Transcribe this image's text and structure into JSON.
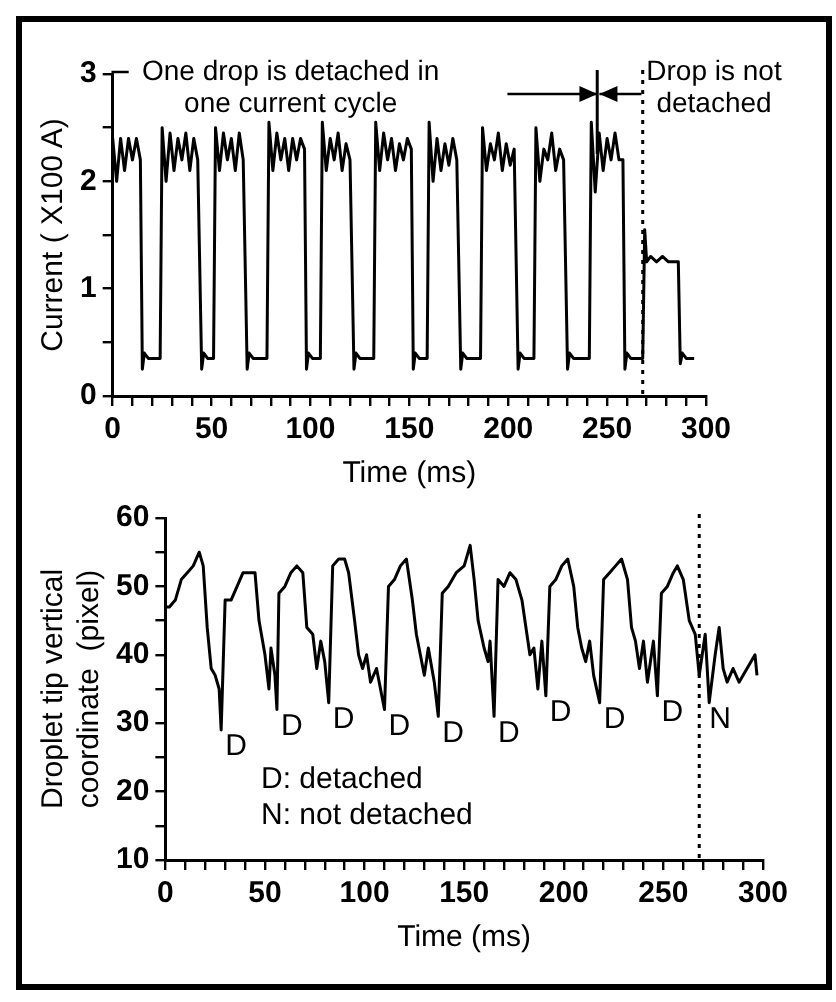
{
  "chart_data": [
    {
      "type": "line",
      "xlabel": "Time (ms)",
      "ylabel": "Current ( X100 A)",
      "xlim": [
        0,
        300
      ],
      "ylim": [
        0,
        3
      ],
      "xticks": [
        0,
        {
          "value": 10,
          "label": null
        },
        {
          "value": 20,
          "label": null
        },
        {
          "value": 30,
          "label": null
        },
        {
          "value": 40,
          "label": null
        },
        50,
        {
          "value": 60,
          "label": null
        },
        {
          "value": 70,
          "label": null
        },
        {
          "value": 80,
          "label": null
        },
        {
          "value": 90,
          "label": null
        },
        100,
        {
          "value": 110,
          "label": null
        },
        {
          "value": 120,
          "label": null
        },
        {
          "value": 130,
          "label": null
        },
        {
          "value": 140,
          "label": null
        },
        150,
        {
          "value": 160,
          "label": null
        },
        {
          "value": 170,
          "label": null
        },
        {
          "value": 180,
          "label": null
        },
        {
          "value": 190,
          "label": null
        },
        200,
        {
          "value": 210,
          "label": null
        },
        {
          "value": 220,
          "label": null
        },
        {
          "value": 230,
          "label": null
        },
        {
          "value": 240,
          "label": null
        },
        250,
        {
          "value": 260,
          "label": null
        },
        {
          "value": 270,
          "label": null
        },
        {
          "value": 280,
          "label": null
        },
        {
          "value": 290,
          "label": null
        },
        300
      ],
      "yticks": [
        0,
        {
          "value": 0.5,
          "label": null
        },
        1,
        {
          "value": 1.5,
          "label": null
        },
        2,
        {
          "value": 2.5,
          "label": null
        },
        3
      ],
      "series": [
        {
          "color": "#000000",
          "x": [
            0,
            2,
            4,
            6,
            8,
            10,
            12,
            14,
            15,
            16,
            18,
            24,
            25,
            27,
            29,
            31,
            33,
            35,
            37,
            39,
            41,
            43,
            45,
            46,
            48,
            51,
            52,
            54,
            56,
            58,
            60,
            62,
            64,
            66,
            68,
            69,
            71,
            78,
            79,
            81,
            83,
            85,
            87,
            89,
            91,
            93,
            95,
            97,
            98,
            99,
            101,
            105,
            106,
            108,
            110,
            112,
            114,
            116,
            118,
            120,
            122,
            123,
            125,
            132,
            133,
            135,
            137,
            139,
            141,
            143,
            145,
            147,
            149,
            151,
            152,
            153,
            155,
            159,
            160,
            162,
            164,
            166,
            168,
            170,
            172,
            174,
            176,
            177,
            179,
            186,
            187,
            189,
            191,
            193,
            195,
            197,
            199,
            201,
            203,
            205,
            206,
            208,
            213,
            214,
            216,
            218,
            220,
            222,
            224,
            226,
            228,
            230,
            231,
            233,
            241,
            242,
            244,
            246,
            248,
            250,
            252,
            254,
            256,
            258,
            259,
            260,
            262,
            268,
            269,
            270,
            272,
            275,
            278,
            281,
            284,
            286,
            287,
            288,
            290,
            294
          ],
          "values": [
            2.4,
            2.0,
            2.4,
            2.1,
            2.4,
            2.2,
            2.4,
            2.2,
            0.25,
            0.4,
            0.35,
            0.35,
            2.5,
            2.0,
            2.45,
            2.1,
            2.4,
            2.2,
            2.45,
            2.1,
            2.4,
            2.2,
            0.25,
            0.4,
            0.35,
            0.35,
            2.5,
            2.1,
            2.45,
            2.2,
            2.4,
            2.1,
            2.45,
            2.2,
            0.25,
            0.4,
            0.35,
            0.35,
            2.55,
            2.1,
            2.45,
            2.2,
            2.4,
            2.1,
            2.4,
            2.2,
            2.4,
            2.3,
            0.25,
            0.4,
            0.35,
            0.35,
            2.55,
            2.1,
            2.4,
            2.2,
            2.45,
            2.1,
            2.35,
            2.2,
            0.25,
            0.4,
            0.35,
            0.35,
            2.55,
            2.1,
            2.45,
            2.2,
            2.4,
            2.1,
            2.35,
            2.2,
            2.4,
            2.3,
            0.25,
            0.4,
            0.35,
            0.35,
            2.55,
            2.0,
            2.4,
            2.1,
            2.35,
            2.15,
            2.4,
            2.2,
            0.25,
            0.4,
            0.35,
            0.35,
            2.5,
            2.1,
            2.35,
            2.2,
            2.45,
            2.1,
            2.35,
            2.15,
            2.3,
            0.25,
            0.4,
            0.35,
            0.35,
            2.5,
            2.0,
            2.3,
            2.2,
            2.45,
            2.1,
            2.3,
            2.2,
            0.25,
            0.4,
            0.35,
            0.35,
            2.55,
            1.9,
            2.45,
            2.1,
            2.4,
            2.2,
            2.45,
            2.2,
            2.2,
            0.25,
            0.4,
            0.35,
            0.35,
            1.55,
            1.25,
            1.3,
            1.25,
            1.3,
            1.25,
            1.25,
            1.25,
            0.3,
            0.4,
            0.35,
            0.35
          ]
        }
      ],
      "ref_lines": [
        {
          "axis": "x",
          "value": 245,
          "line_style": "solid"
        },
        {
          "axis": "x",
          "value": 268,
          "line_style": "dotted"
        }
      ],
      "annotations": [
        "One drop is detached in one current cycle",
        "Drop is not detached"
      ]
    },
    {
      "type": "line",
      "xlabel": "Time (ms)",
      "ylabel": "Droplet tip vertical\ncoordinate  (pixel)",
      "xlim": [
        0,
        300
      ],
      "ylim": [
        10,
        60
      ],
      "xticks": [
        0,
        {
          "value": 10,
          "label": null
        },
        {
          "value": 20,
          "label": null
        },
        {
          "value": 30,
          "label": null
        },
        {
          "value": 40,
          "label": null
        },
        50,
        {
          "value": 60,
          "label": null
        },
        {
          "value": 70,
          "label": null
        },
        {
          "value": 80,
          "label": null
        },
        {
          "value": 90,
          "label": null
        },
        100,
        {
          "value": 110,
          "label": null
        },
        {
          "value": 120,
          "label": null
        },
        {
          "value": 130,
          "label": null
        },
        {
          "value": 140,
          "label": null
        },
        150,
        {
          "value": 160,
          "label": null
        },
        {
          "value": 170,
          "label": null
        },
        {
          "value": 180,
          "label": null
        },
        {
          "value": 190,
          "label": null
        },
        200,
        {
          "value": 210,
          "label": null
        },
        {
          "value": 220,
          "label": null
        },
        {
          "value": 230,
          "label": null
        },
        {
          "value": 240,
          "label": null
        },
        250,
        {
          "value": 260,
          "label": null
        },
        {
          "value": 270,
          "label": null
        },
        {
          "value": 280,
          "label": null
        },
        {
          "value": 290,
          "label": null
        },
        300
      ],
      "yticks": [
        10,
        {
          "value": 15,
          "label": null
        },
        20,
        {
          "value": 25,
          "label": null
        },
        30,
        {
          "value": 35,
          "label": null
        },
        40,
        {
          "value": 45,
          "label": null
        },
        50,
        {
          "value": 55,
          "label": null
        },
        60
      ],
      "series": [
        {
          "color": "#000000",
          "x": [
            0,
            2,
            5,
            8,
            11,
            14,
            17,
            19,
            21,
            23,
            25,
            27,
            28,
            30,
            33,
            36,
            39,
            43,
            45,
            47,
            50,
            52,
            53,
            55,
            56,
            57,
            60,
            63,
            66,
            69,
            71,
            74,
            76,
            78,
            80,
            82,
            84,
            87,
            90,
            92,
            95,
            97,
            99,
            101,
            103,
            106,
            108,
            110,
            112,
            115,
            118,
            121,
            124,
            126,
            128,
            130,
            132,
            135,
            137,
            139,
            142,
            146,
            150,
            153,
            155,
            157,
            160,
            162,
            163,
            165,
            167,
            170,
            173,
            176,
            179,
            181,
            183,
            185,
            187,
            189,
            191,
            193,
            196,
            199,
            202,
            205,
            207,
            209,
            211,
            213,
            215,
            218,
            220,
            223,
            226,
            229,
            232,
            234,
            236,
            238,
            240,
            242,
            245,
            247,
            249,
            252,
            255,
            257,
            260,
            263,
            266,
            268,
            271,
            273,
            276,
            278,
            280,
            282,
            285,
            288,
            292,
            296,
            297
          ],
          "values": [
            47,
            47,
            48,
            51,
            52,
            53,
            55,
            53,
            44,
            38,
            37,
            35,
            29,
            48,
            48,
            50,
            52,
            52,
            52,
            45,
            40,
            35,
            41,
            37,
            32,
            49,
            50,
            52,
            53,
            52,
            44,
            43,
            38,
            42,
            39,
            33,
            53,
            54,
            54,
            52,
            45,
            40,
            38,
            40,
            36,
            38,
            35,
            32,
            50,
            51,
            53,
            54,
            48,
            43,
            40,
            37,
            41,
            36,
            31,
            49,
            50,
            52,
            53,
            56,
            51,
            45,
            41,
            39,
            42,
            31,
            51,
            50,
            52,
            51,
            48,
            44,
            40,
            41,
            35,
            42,
            34,
            50,
            51,
            53,
            54,
            50,
            44,
            41,
            39,
            42,
            37,
            33,
            51,
            52,
            53,
            54,
            51,
            44,
            42,
            38,
            42,
            36,
            42,
            34,
            49,
            50,
            52,
            53,
            51,
            45,
            43,
            37,
            43,
            33,
            40,
            44,
            38,
            36,
            38,
            36,
            38,
            40,
            37
          ]
        }
      ],
      "ref_lines": [
        {
          "axis": "x",
          "value": 268,
          "line_style": "dotted"
        }
      ],
      "annotations": [
        {
          "text": "D",
          "x": 28,
          "y": 29
        },
        {
          "text": "D",
          "x": 56,
          "y": 32
        },
        {
          "text": "D",
          "x": 82,
          "y": 33
        },
        {
          "text": "D",
          "x": 110,
          "y": 32
        },
        {
          "text": "D",
          "x": 137,
          "y": 31
        },
        {
          "text": "D",
          "x": 165,
          "y": 31
        },
        {
          "text": "D",
          "x": 191,
          "y": 34
        },
        {
          "text": "D",
          "x": 218,
          "y": 33
        },
        {
          "text": "D",
          "x": 247,
          "y": 34
        },
        {
          "text": "N",
          "x": 271,
          "y": 33
        },
        "D: detached",
        "N: not detached"
      ]
    }
  ]
}
